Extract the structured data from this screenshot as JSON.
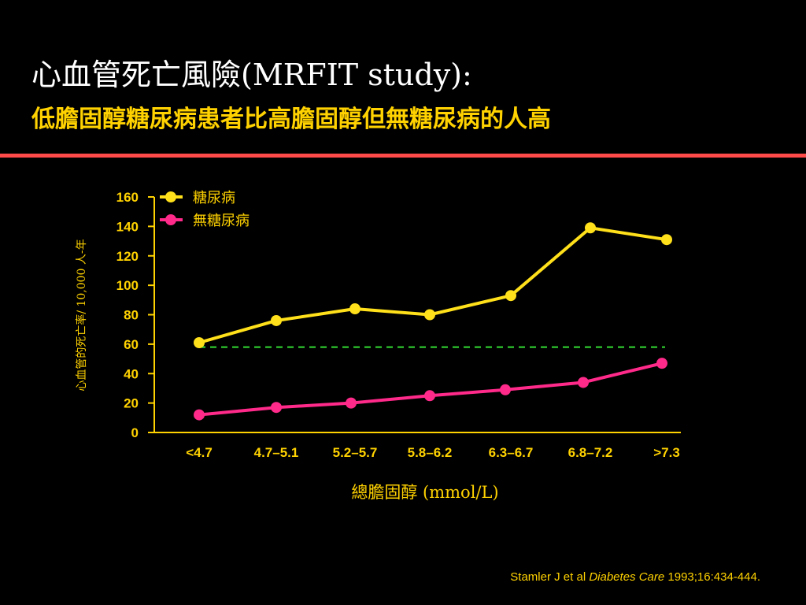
{
  "slide": {
    "title": "心血管死亡風險(MRFIT study):",
    "subtitle": "低膽固醇糖尿病患者比高膽固醇但無糖尿病的人高",
    "citation_authors": "Stamler J et al ",
    "citation_journal": "Diabetes Care",
    "citation_ref": " 1993;16:434-444."
  },
  "colors": {
    "title": "#ffffff",
    "subtitle": "#ffd200",
    "divider": "#ff4a4a",
    "axis": "#ffd200",
    "diabetes_series": "#ffe01a",
    "no_diabetes_series": "#ff2a8a",
    "reference_line": "#33dd33"
  },
  "chart_data": {
    "type": "line",
    "title": "",
    "xlabel": "總膽固醇 (mmol/L)",
    "ylabel": "心血管的死亡率/ 10,000 人-年",
    "categories": [
      "<4.7",
      "4.7–5.1",
      "5.2–5.7",
      "5.8–6.2",
      "6.3–6.7",
      "6.8–7.2",
      ">7.3"
    ],
    "ylim": [
      0,
      160
    ],
    "yticks": [
      0,
      20,
      40,
      60,
      80,
      100,
      120,
      140,
      160
    ],
    "grid": false,
    "legend_position": "top-left",
    "series": [
      {
        "name": "糖尿病",
        "values": [
          61,
          76,
          84,
          80,
          93,
          139,
          131
        ]
      },
      {
        "name": "無糖尿病",
        "values": [
          12,
          17,
          20,
          25,
          29,
          34,
          47
        ]
      }
    ],
    "reference_line": {
      "value": 58,
      "style": "dashed"
    }
  }
}
